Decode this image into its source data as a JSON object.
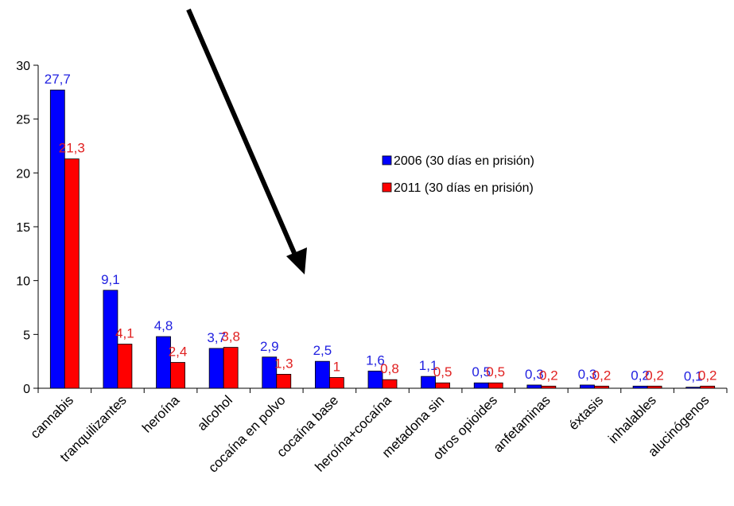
{
  "chart_data": {
    "type": "bar",
    "categories": [
      "cannabis",
      "tranquilizantes",
      "heroína",
      "alcohol",
      "cocaína en polvo",
      "cocaína base",
      "heroína+cocaína",
      "metadona sin",
      "otros opioides",
      "anfetaminas",
      "éxtasis",
      "inhalables",
      "alucinógenos"
    ],
    "series": [
      {
        "name": "2006 (30 días en prisión)",
        "color": "#0000ff",
        "label_color": "#1f1fe0",
        "values": [
          27.7,
          9.1,
          4.8,
          3.7,
          2.9,
          2.5,
          1.6,
          1.1,
          0.5,
          0.3,
          0.3,
          0.2,
          0.1
        ],
        "labels": [
          "27,7",
          "9,1",
          "4,8",
          "3,7",
          "2,9",
          "2,5",
          "1,6",
          "1,1",
          "0,5",
          "0,3",
          "0,3",
          "0,2",
          "0,1"
        ]
      },
      {
        "name": "2011 (30 días en prisión)",
        "color": "#ff0000",
        "label_color": "#e02020",
        "values": [
          21.3,
          4.1,
          2.4,
          3.8,
          1.3,
          1.0,
          0.8,
          0.5,
          0.5,
          0.2,
          0.2,
          0.2,
          0.2
        ],
        "labels": [
          "21,3",
          "4,1",
          "2,4",
          "3,8",
          "1,3",
          "1",
          "0,8",
          "0,5",
          "0,5",
          "0,2",
          "0,2",
          "0,2",
          "0,2"
        ]
      }
    ],
    "title": "",
    "xlabel": "",
    "ylabel": "",
    "ylim": [
      0,
      30
    ],
    "yticks": [
      0,
      5,
      10,
      15,
      20,
      25,
      30
    ],
    "legend_position": "right",
    "grid": false
  }
}
